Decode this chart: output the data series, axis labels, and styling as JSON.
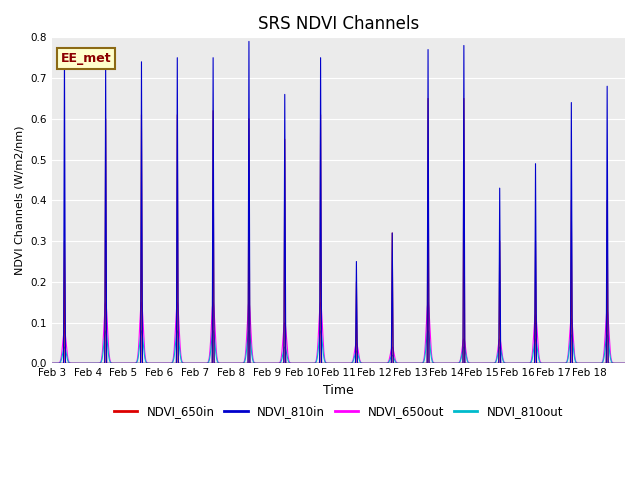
{
  "title": "SRS NDVI Channels",
  "xlabel": "Time",
  "ylabel": "NDVI Channels (W/m2/nm)",
  "ylim": [
    0.0,
    0.8
  ],
  "yticks": [
    0.0,
    0.1,
    0.2,
    0.3,
    0.4,
    0.5,
    0.6,
    0.7,
    0.8
  ],
  "axes_facecolor": "#ebebeb",
  "fig_facecolor": "#ffffff",
  "legend_label": "EE_met",
  "series": {
    "NDVI_650in": {
      "color": "#dd0000",
      "lw": 0.8
    },
    "NDVI_810in": {
      "color": "#0000cc",
      "lw": 0.8
    },
    "NDVI_650out": {
      "color": "#ff00ff",
      "lw": 0.8
    },
    "NDVI_810out": {
      "color": "#00bbcc",
      "lw": 0.8
    }
  },
  "xtick_labels": [
    "Feb 3",
    "Feb 4",
    "Feb 5",
    "Feb 6",
    "Feb 7",
    "Feb 8",
    "Feb 9",
    "Feb 10",
    "Feb 11",
    "Feb 12",
    "Feb 13",
    "Feb 14",
    "Feb 15",
    "Feb 16",
    "Feb 17",
    "Feb 18"
  ],
  "n_days": 16,
  "peaks_810in": [
    0.76,
    0.73,
    0.74,
    0.75,
    0.75,
    0.79,
    0.66,
    0.75,
    0.25,
    0.32,
    0.77,
    0.78,
    0.43,
    0.49,
    0.64,
    0.68
  ],
  "peaks_650in": [
    0.3,
    0.6,
    0.61,
    0.61,
    0.62,
    0.6,
    0.55,
    0.61,
    0.2,
    0.32,
    0.65,
    0.65,
    0.3,
    0.3,
    0.4,
    0.4
  ],
  "peaks_650out": [
    0.08,
    0.15,
    0.15,
    0.15,
    0.15,
    0.15,
    0.1,
    0.15,
    0.05,
    0.04,
    0.15,
    0.06,
    0.06,
    0.12,
    0.11,
    0.13
  ],
  "peaks_810out": [
    0.04,
    0.08,
    0.08,
    0.08,
    0.08,
    0.08,
    0.04,
    0.08,
    0.03,
    0.02,
    0.08,
    0.04,
    0.04,
    0.06,
    0.07,
    0.07
  ],
  "spike_offsets": [
    0.35,
    0.5,
    0.5,
    0.5,
    0.5,
    0.5,
    0.5,
    0.5,
    0.5,
    0.5,
    0.5,
    0.5,
    0.5,
    0.5,
    0.5,
    0.5
  ]
}
